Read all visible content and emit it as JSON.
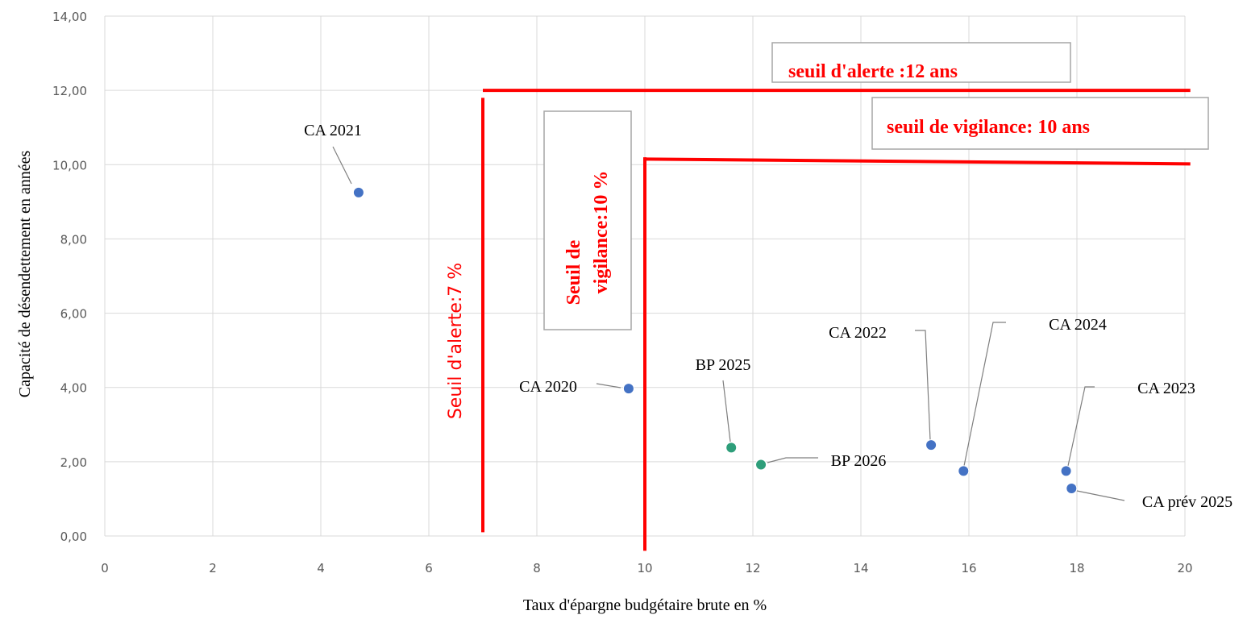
{
  "chart_data": {
    "type": "scatter",
    "xlabel": "Taux d'épargne budgétaire brute en %",
    "ylabel": "Capacité de désendettement en années",
    "xlim": [
      0,
      20
    ],
    "ylim": [
      0,
      14
    ],
    "x_ticks": [
      "0",
      "2",
      "4",
      "6",
      "8",
      "10",
      "12",
      "14",
      "16",
      "18",
      "20"
    ],
    "y_ticks": [
      "0,00",
      "2,00",
      "4,00",
      "6,00",
      "8,00",
      "10,00",
      "12,00",
      "14,00"
    ],
    "grid": true,
    "points": [
      {
        "label": "CA 2021",
        "x": 4.7,
        "y": 9.25,
        "color": "#4472c4"
      },
      {
        "label": "CA 2020",
        "x": 9.7,
        "y": 3.97,
        "color": "#4472c4"
      },
      {
        "label": "BP 2025",
        "x": 11.6,
        "y": 2.38,
        "color": "#2e9e7a"
      },
      {
        "label": "BP 2026",
        "x": 12.15,
        "y": 1.92,
        "color": "#2e9e7a"
      },
      {
        "label": "CA 2022",
        "x": 15.3,
        "y": 2.45,
        "color": "#4472c4"
      },
      {
        "label": "CA 2024",
        "x": 15.9,
        "y": 1.75,
        "color": "#4472c4"
      },
      {
        "label": "CA 2023",
        "x": 17.8,
        "y": 1.75,
        "color": "#4472c4"
      },
      {
        "label": "CA prév 2025",
        "x": 17.9,
        "y": 1.28,
        "color": "#4472c4"
      }
    ],
    "thresholds": {
      "alerte_horizontal": {
        "label": "seuil d'alerte :12 ans",
        "y": 12
      },
      "vigilance_horizontal": {
        "label": "seuil de vigilance: 10 ans",
        "y": 10
      },
      "alerte_vertical": {
        "label": "Seuil d'alerte:7 %",
        "x": 7
      },
      "vigilance_vertical": {
        "label_line1": "Seuil de",
        "label_line2": "vigilance:10 %",
        "x": 10
      }
    },
    "threshold_color": "#ff0000",
    "grid_color": "#d9d9d9"
  }
}
